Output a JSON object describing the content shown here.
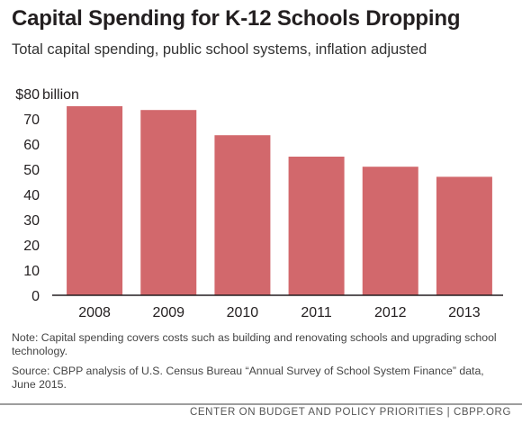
{
  "title": "Capital Spending for K-12 Schools Dropping",
  "subtitle": "Total capital spending, public school systems, inflation adjusted",
  "note": "Note:  Capital spending covers costs such as building and renovating schools and upgrading school technology.",
  "source": "Source: CBPP analysis of U.S. Census Bureau “Annual Survey of School System Finance” data, June 2015.",
  "footer": "CENTER ON BUDGET AND POLICY PRIORITIES | CBPP.ORG",
  "colors": {
    "bar": "#d2686c",
    "axis": "#231f20"
  },
  "chart_data": {
    "type": "bar",
    "title": "Capital Spending for K-12 Schools Dropping",
    "subtitle": "Total capital spending, public school systems, inflation adjusted",
    "xlabel": "",
    "ylabel": "",
    "y_unit_label": "billion",
    "ylim": [
      0,
      80
    ],
    "yticks": [
      0,
      10,
      20,
      30,
      40,
      50,
      60,
      70,
      80
    ],
    "ytick_labels": [
      "0",
      "10",
      "20",
      "30",
      "40",
      "50",
      "60",
      "70",
      "$80"
    ],
    "grid": false,
    "categories": [
      "2008",
      "2009",
      "2010",
      "2011",
      "2012",
      "2013"
    ],
    "values": [
      75,
      73.5,
      63.5,
      55,
      51,
      47
    ]
  }
}
